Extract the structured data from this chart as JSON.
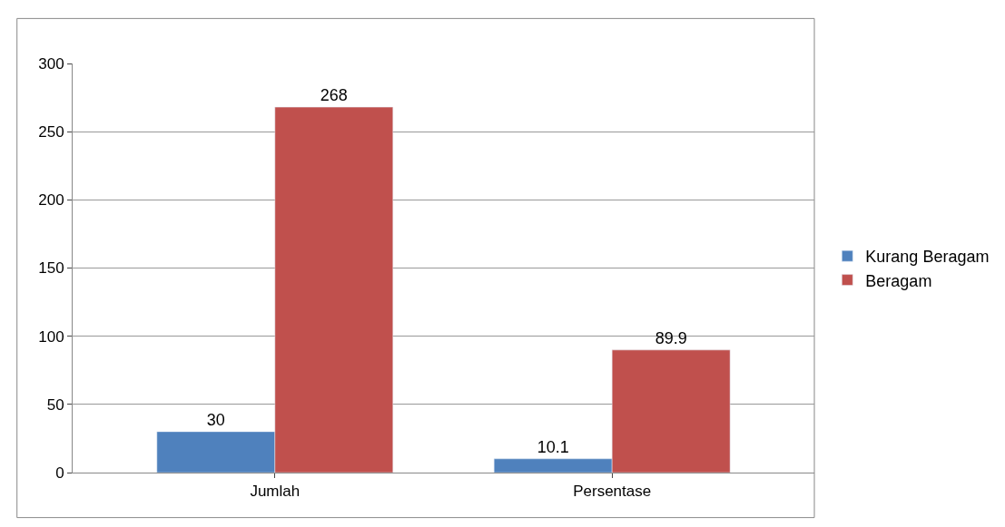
{
  "chart_data": {
    "type": "bar",
    "categories": [
      "Jumlah",
      "Persentase"
    ],
    "series": [
      {
        "name": "Kurang Beragam",
        "color": "#4f81bd",
        "values": [
          30,
          10.1
        ]
      },
      {
        "name": "Beragam",
        "color": "#c0504d",
        "values": [
          268,
          89.9
        ]
      }
    ],
    "ylim": [
      0,
      300
    ],
    "yticks": [
      0,
      50,
      100,
      150,
      200,
      250,
      300
    ],
    "grid": "y",
    "legend": "right",
    "data_labels": true
  }
}
